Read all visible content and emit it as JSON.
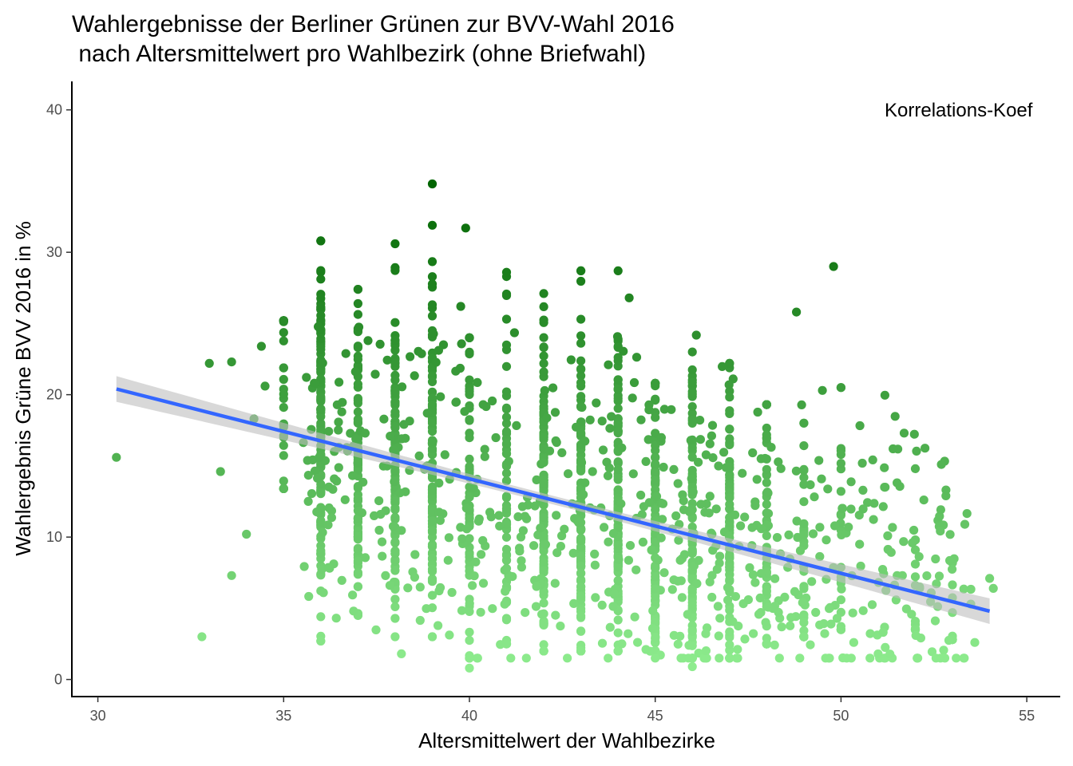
{
  "chart_data": {
    "type": "scatter",
    "title_line1": "Wahlergebnisse der Berliner Grünen zur BVV-Wahl 2016",
    "title_line2": " nach Altersmittelwert pro Wahlbezirk (ohne Briefwahl)",
    "xlabel": "Altersmittelwert der Wahlbezirke",
    "ylabel": "Wahlergebnis Grüne BVV 2016 in %",
    "annotation": "Korrelations-Koef",
    "xlim": [
      29.3,
      55.9
    ],
    "ylim": [
      -1.2,
      42
    ],
    "x_ticks": [
      30,
      35,
      40,
      45,
      50,
      55
    ],
    "y_ticks": [
      0,
      10,
      20,
      30,
      40
    ],
    "grid": false,
    "point_color_scale": {
      "low": "#90EE90",
      "high": "#006400",
      "mapped_to": "y"
    },
    "regression_line": {
      "method": "lm",
      "color": "#3366FF",
      "confidence_band_color": "#BEBEBE",
      "start": {
        "x": 30.5,
        "y": 20.4
      },
      "end": {
        "x": 54.0,
        "y": 4.8
      },
      "band_halfwidth_ends": 0.9,
      "band_halfwidth_center": 0.3
    },
    "notable_points": [
      {
        "x": 30.5,
        "y": 15.6
      },
      {
        "x": 32.8,
        "y": 3.0
      },
      {
        "x": 33.0,
        "y": 22.2
      },
      {
        "x": 33.3,
        "y": 14.6
      },
      {
        "x": 33.6,
        "y": 7.3
      },
      {
        "x": 33.6,
        "y": 22.3
      },
      {
        "x": 34.0,
        "y": 10.2
      },
      {
        "x": 34.2,
        "y": 18.3
      },
      {
        "x": 34.4,
        "y": 23.4
      },
      {
        "x": 34.5,
        "y": 20.6
      },
      {
        "x": 39.0,
        "y": 34.8
      },
      {
        "x": 39.9,
        "y": 31.7
      },
      {
        "x": 49.8,
        "y": 29.0
      },
      {
        "x": 48.8,
        "y": 25.8
      },
      {
        "x": 44.3,
        "y": 26.8
      },
      {
        "x": 40.0,
        "y": 0.8
      },
      {
        "x": 46.0,
        "y": 0.9
      },
      {
        "x": 51.0,
        "y": 1.8
      },
      {
        "x": 53.6,
        "y": 2.6
      },
      {
        "x": 54.0,
        "y": 7.1
      },
      {
        "x": 54.1,
        "y": 6.4
      },
      {
        "x": 52.7,
        "y": 15.1
      },
      {
        "x": 52.0,
        "y": 14.8
      },
      {
        "x": 51.4,
        "y": 16.2
      },
      {
        "x": 51.7,
        "y": 17.3
      },
      {
        "x": 50.2,
        "y": 10.7
      },
      {
        "x": 49.5,
        "y": 20.3
      },
      {
        "x": 50.0,
        "y": 20.5
      }
    ],
    "dense_columns": [
      {
        "x": 35,
        "y_range": [
          13.4,
          25.2
        ],
        "n": 30
      },
      {
        "x": 36,
        "y_range": [
          2.7,
          30.8
        ],
        "n": 120
      },
      {
        "x": 37,
        "y_range": [
          4.5,
          27.4
        ],
        "n": 80
      },
      {
        "x": 38,
        "y_range": [
          3.0,
          30.6
        ],
        "n": 100
      },
      {
        "x": 39,
        "y_range": [
          3.0,
          31.9
        ],
        "n": 100
      },
      {
        "x": 40,
        "y_range": [
          1.5,
          24.0
        ],
        "n": 60
      },
      {
        "x": 41,
        "y_range": [
          2.5,
          28.6
        ],
        "n": 60
      },
      {
        "x": 42,
        "y_range": [
          2.0,
          27.1
        ],
        "n": 110
      },
      {
        "x": 43,
        "y_range": [
          2.0,
          28.7
        ],
        "n": 120
      },
      {
        "x": 44,
        "y_range": [
          2.0,
          28.7
        ],
        "n": 110
      },
      {
        "x": 45,
        "y_range": [
          2.0,
          20.8
        ],
        "n": 90
      },
      {
        "x": 46,
        "y_range": [
          1.5,
          23.0
        ],
        "n": 90
      },
      {
        "x": 47,
        "y_range": [
          1.5,
          22.2
        ],
        "n": 80
      },
      {
        "x": 48,
        "y_range": [
          2.5,
          19.3
        ],
        "n": 60
      },
      {
        "x": 49,
        "y_range": [
          3.0,
          18.0
        ],
        "n": 40
      },
      {
        "x": 50,
        "y_range": [
          3.5,
          20.5
        ],
        "n": 20
      },
      {
        "x": 52,
        "y_range": [
          3.5,
          9.8
        ],
        "n": 12
      },
      {
        "x": 53,
        "y_range": [
          2.8,
          8.2
        ],
        "n": 10
      }
    ],
    "fractional_scatter": {
      "x_range": [
        35.5,
        53.5
      ],
      "y_center_at_x_min": 15,
      "y_center_at_x_max": 6,
      "n": 620
    }
  }
}
